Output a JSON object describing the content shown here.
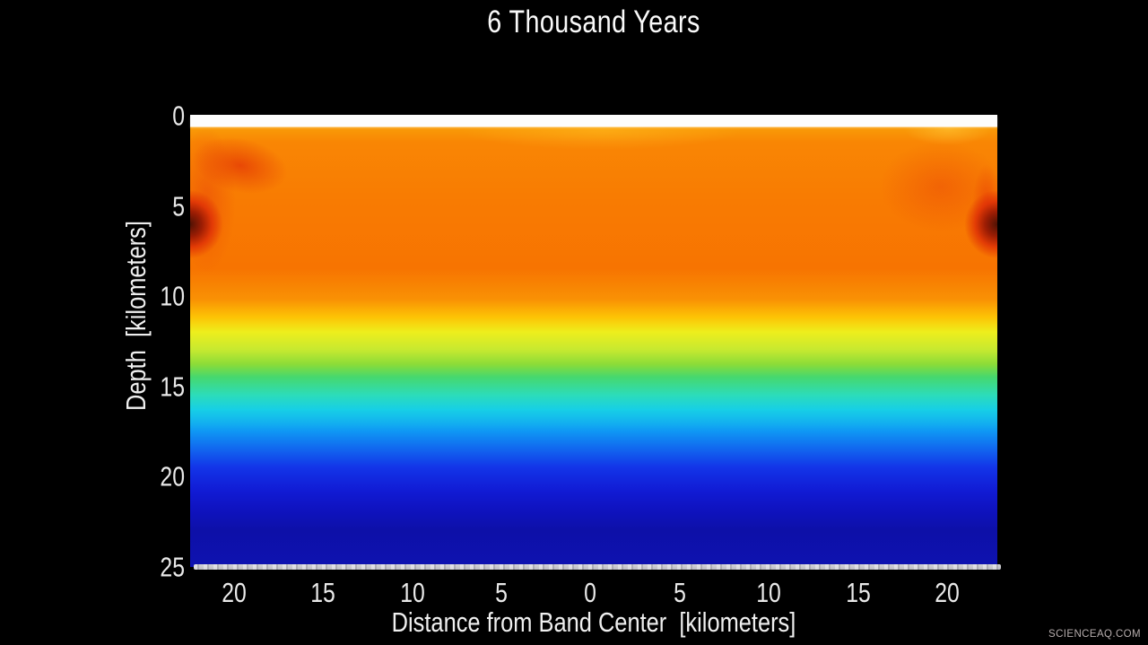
{
  "watermark": "SCIENCEAQ.COM",
  "colors": {
    "background": "#000000",
    "text": "#efefef",
    "surface_band": "#fdfdfd",
    "basal_band": "#c9c9ce"
  },
  "chart_data": {
    "type": "heatmap",
    "title": "6 Thousand Years",
    "xlabel": "Distance from Band Center  [kilometers]",
    "ylabel": "Depth  [kilometers]",
    "x_ticks": [
      "20",
      "15",
      "10",
      "5",
      "0",
      "5",
      "10",
      "15",
      "20"
    ],
    "x_range_km": [
      -22.5,
      22.5
    ],
    "y_ticks": [
      "0",
      "5",
      "10",
      "15",
      "20",
      "25"
    ],
    "y_range_km": [
      0,
      25
    ],
    "legend": "none (no colorbar shown; jet-like palette, red/orange = shallow-hot, blue = deep-cold)",
    "grid": "off",
    "surface_layer": {
      "description": "white band at 0 km depth (surface ice crust)",
      "depth_km": [
        0,
        0.6
      ],
      "color": "#fdfdfd"
    },
    "basal_layer": {
      "description": "thin light-gray speckled band at 25 km depth (base)",
      "depth_km": 25,
      "color": "#c9c9ce"
    },
    "depth_color_profile": [
      {
        "depth_km": 0.0,
        "color": "#fcae12"
      },
      {
        "depth_km": 0.65,
        "color": "#f99d08"
      },
      {
        "depth_km": 1.5,
        "color": "#f98604"
      },
      {
        "depth_km": 4.8,
        "color": "#f87b02"
      },
      {
        "depth_km": 8.5,
        "color": "#f77401"
      },
      {
        "depth_km": 10.2,
        "color": "#f99104"
      },
      {
        "depth_km": 11.2,
        "color": "#fdc405"
      },
      {
        "depth_km": 12.0,
        "color": "#eeee1c"
      },
      {
        "depth_km": 13.0,
        "color": "#c6e930"
      },
      {
        "depth_km": 13.8,
        "color": "#8bdc38"
      },
      {
        "depth_km": 14.5,
        "color": "#46d86e"
      },
      {
        "depth_km": 15.5,
        "color": "#2cdcba"
      },
      {
        "depth_km": 16.3,
        "color": "#17cfe6"
      },
      {
        "depth_km": 17.0,
        "color": "#13b2ef"
      },
      {
        "depth_km": 17.5,
        "color": "#0f97f4"
      },
      {
        "depth_km": 18.3,
        "color": "#116ff0"
      },
      {
        "depth_km": 19.5,
        "color": "#1334e8"
      },
      {
        "depth_km": 20.8,
        "color": "#111bd4"
      },
      {
        "depth_km": 21.8,
        "color": "#0f13c0"
      },
      {
        "depth_km": 23.0,
        "color": "#0d10a8"
      },
      {
        "depth_km": 25.0,
        "color": "#0e12b0"
      }
    ],
    "hot_anomalies": [
      {
        "x_km": -22.5,
        "depth_km": 6,
        "description": "dark-red hot spot at left edge"
      },
      {
        "x_km": 22.5,
        "depth_km": 6,
        "description": "dark-red hot spot at right edge"
      },
      {
        "x_km": -21,
        "depth_km": 1.5,
        "description": "red diagonal streak from upper-left corner"
      },
      {
        "x_km": 22,
        "depth_km": 3.5,
        "description": "red streak along right edge above hot spot"
      },
      {
        "x_km": 19,
        "depth_km": 2.5,
        "description": "diffuse red patch near upper right"
      },
      {
        "x_km": 0,
        "depth_km": 0.8,
        "description": "amber warm zone just beneath surface at band center"
      }
    ]
  }
}
